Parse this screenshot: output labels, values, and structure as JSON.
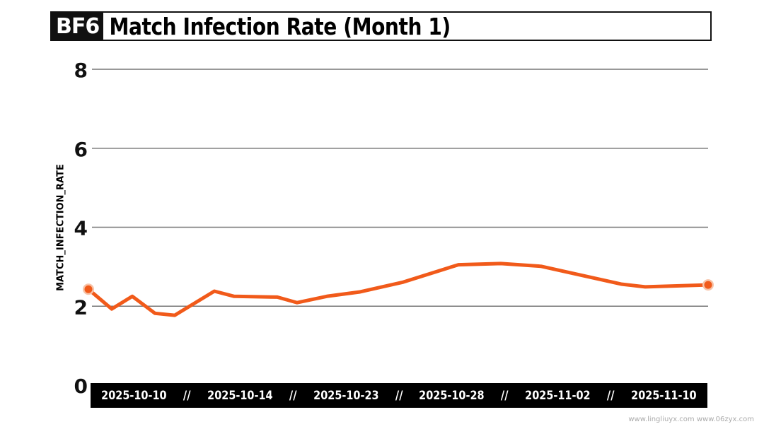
{
  "title": {
    "brand": "BF6",
    "text": "Match Infection Rate (Month 1)"
  },
  "watermark": "www.lingliuyx.com  www.06zyx.com",
  "chart_data": {
    "type": "line",
    "title": "Match Infection Rate (Month 1)",
    "ylabel": "MATCH_INFECTION_RATE",
    "xlabel": "",
    "ylim": [
      0,
      8
    ],
    "yticks": [
      0,
      2,
      4,
      6,
      8
    ],
    "grid": true,
    "x_tick_labels": [
      "2025-10-10",
      "2025-10-14",
      "2025-10-23",
      "2025-10-28",
      "2025-11-02",
      "2025-11-10"
    ],
    "x_separator": "//",
    "values": [
      2.43,
      1.93,
      2.25,
      1.82,
      1.77,
      2.38,
      2.25,
      2.23,
      2.09,
      2.25,
      2.36,
      2.61,
      3.05,
      3.08,
      3.01,
      2.56,
      2.49,
      2.54
    ],
    "color": "#f15a1a",
    "endpoint_markers": true
  }
}
